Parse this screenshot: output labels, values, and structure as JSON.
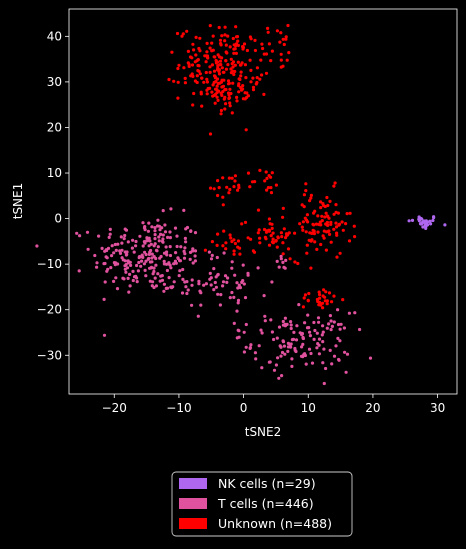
{
  "chart_data": {
    "type": "scatter",
    "xlabel": "tSNE2",
    "ylabel": "tSNE1",
    "xlim": [
      -27,
      33
    ],
    "ylim": [
      -38.5,
      46
    ],
    "xticks": [
      -20,
      -10,
      0,
      10,
      20,
      30
    ],
    "yticks": [
      -30,
      -20,
      -10,
      0,
      10,
      20,
      30,
      40
    ],
    "grid": false,
    "legend_position": "below",
    "background": "#000000",
    "foreground": "#ffffff",
    "series": [
      {
        "name": "NK cells (n=29)",
        "color": "#b067f0",
        "count": 29,
        "clusters": [
          {
            "cx": 27.8,
            "cy": -0.8,
            "sx": 1.2,
            "sy": 0.8,
            "n": 29
          }
        ]
      },
      {
        "name": "T cells (n=446)",
        "color": "#e0529e",
        "count": 446,
        "clusters": [
          {
            "cx": -15,
            "cy": -8,
            "sx": 4.2,
            "sy": 4.2,
            "n": 230
          },
          {
            "cx": -4,
            "cy": -14,
            "sx": 4,
            "sy": 3.2,
            "n": 70
          },
          {
            "cx": 9,
            "cy": -27,
            "sx": 3.8,
            "sy": 3.2,
            "n": 130
          },
          {
            "cx": 6,
            "cy": -10,
            "sx": 0.5,
            "sy": 0.8,
            "n": 8
          },
          {
            "cx": 0,
            "cy": -24,
            "sx": 1.5,
            "sy": 2,
            "n": 8
          }
        ]
      },
      {
        "name": "Unknown (n=488)",
        "color": "#ff0000",
        "count": 488,
        "clusters": [
          {
            "cx": -3.5,
            "cy": 34,
            "sx": 3.2,
            "sy": 4,
            "n": 185
          },
          {
            "cx": -3,
            "cy": 27,
            "sx": 2.5,
            "sy": 2.5,
            "n": 55
          },
          {
            "cx": 5,
            "cy": 38,
            "sx": 2.5,
            "sy": 2,
            "n": 20
          },
          {
            "cx": 12,
            "cy": -1.5,
            "sx": 2.3,
            "sy": 3.8,
            "n": 100
          },
          {
            "cx": 4,
            "cy": -3,
            "sx": 2.3,
            "sy": 1.8,
            "n": 40
          },
          {
            "cx": -1,
            "cy": -5,
            "sx": 2,
            "sy": 2,
            "n": 25
          },
          {
            "cx": -2,
            "cy": 7,
            "sx": 1.6,
            "sy": 1.8,
            "n": 20
          },
          {
            "cx": 3.5,
            "cy": 8,
            "sx": 1.2,
            "sy": 1.5,
            "n": 15
          },
          {
            "cx": 12,
            "cy": -17.5,
            "sx": 1.5,
            "sy": 1.2,
            "n": 28
          }
        ]
      }
    ]
  }
}
